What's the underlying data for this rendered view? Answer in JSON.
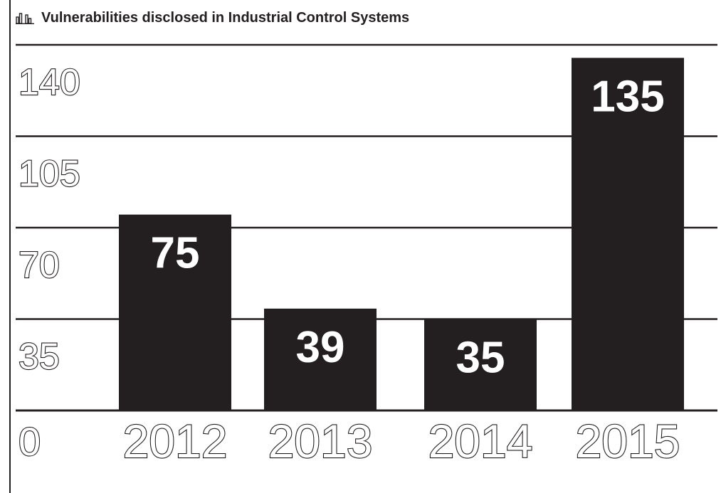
{
  "header": {
    "icon": "bar-chart-icon",
    "title": "Vulnerabilities disclosed in Industrial Control Systems"
  },
  "colors": {
    "bar": "#231f20",
    "grid": "#231f20",
    "background": "#ffffff"
  },
  "chart_data": {
    "type": "bar",
    "title": "Vulnerabilities disclosed in Industrial Control Systems",
    "categories": [
      "2012",
      "2013",
      "2014",
      "2015"
    ],
    "values": [
      75,
      39,
      35,
      135
    ],
    "data_labels": [
      "75",
      "39",
      "35",
      "135"
    ],
    "y_ticks": [
      "0",
      "35",
      "70",
      "105",
      "140"
    ],
    "ylim": [
      0,
      140
    ],
    "xlabel": "",
    "ylabel": "",
    "grid": true,
    "legend": "none"
  }
}
